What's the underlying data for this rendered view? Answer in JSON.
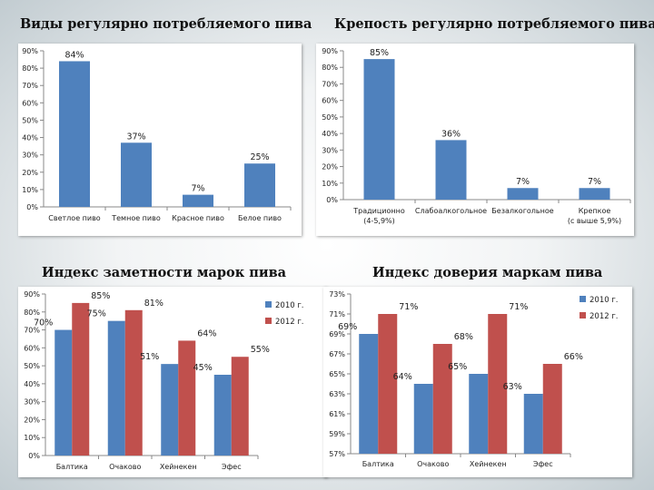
{
  "titles": {
    "types": "Виды регулярно потребляемого пива",
    "strength": "Крепость регулярно потребляемого пива",
    "awareness": "Индекс заметности марок пива",
    "trust": "Индекс доверия маркам пива"
  },
  "colors": {
    "blue": "#4f81bd",
    "red": "#c0504d"
  },
  "chart_data": [
    {
      "type": "bar",
      "title": "Виды регулярно потребляемого пива",
      "categories": [
        [
          "Светлое пиво"
        ],
        [
          "Темное пиво"
        ],
        [
          "Красное пиво"
        ],
        [
          "Белое пиво"
        ]
      ],
      "series": [
        {
          "values": [
            84,
            37,
            7,
            25
          ],
          "labels": [
            "84%",
            "37%",
            "7%",
            "25%"
          ]
        }
      ],
      "ylim": [
        0,
        90
      ],
      "yticks": [
        0,
        10,
        20,
        30,
        40,
        50,
        60,
        70,
        80,
        90
      ],
      "tick_suffix": "%",
      "grid": false,
      "legend": "none"
    },
    {
      "type": "bar",
      "title": "Крепость регулярно потребляемого пива",
      "categories": [
        [
          "Традиционно",
          "(4-5,9%)"
        ],
        [
          "Слабоалкогольное"
        ],
        [
          "Безалкогольное"
        ],
        [
          "Крепкое",
          "(с выше 5,9%)"
        ]
      ],
      "series": [
        {
          "values": [
            85,
            36,
            7,
            7
          ],
          "labels": [
            "85%",
            "36%",
            "7%",
            "7%"
          ]
        }
      ],
      "ylim": [
        0,
        90
      ],
      "yticks": [
        0,
        10,
        20,
        30,
        40,
        50,
        60,
        70,
        80,
        90
      ],
      "tick_suffix": "%",
      "grid": false,
      "legend": "none"
    },
    {
      "type": "bar",
      "title": "Индекс заметности марок пива",
      "categories": [
        [
          "Балтика"
        ],
        [
          "Очаково"
        ],
        [
          "Хейнекен"
        ],
        [
          "Эфес"
        ]
      ],
      "series": [
        {
          "name": "2010 г.",
          "values": [
            70,
            75,
            51,
            45
          ],
          "labels": [
            "70%",
            "75%",
            "51%",
            "45%"
          ]
        },
        {
          "name": "2012 г.",
          "values": [
            85,
            81,
            64,
            55
          ],
          "labels": [
            "85%",
            "81%",
            "64%",
            "55%"
          ]
        }
      ],
      "ylim": [
        0,
        90
      ],
      "yticks": [
        0,
        10,
        20,
        30,
        40,
        50,
        60,
        70,
        80,
        90
      ],
      "tick_suffix": "%",
      "grid": false,
      "legend": "right"
    },
    {
      "type": "bar",
      "title": "Индекс доверия маркам пива",
      "categories": [
        [
          "Балтика"
        ],
        [
          "Очаково"
        ],
        [
          "Хейнекен"
        ],
        [
          "Эфес"
        ]
      ],
      "series": [
        {
          "name": "2010 г.",
          "values": [
            69,
            64,
            65,
            63
          ],
          "labels": [
            "69%",
            "64%",
            "65%",
            "63%"
          ]
        },
        {
          "name": "2012 г.",
          "values": [
            71,
            68,
            71,
            66
          ],
          "labels": [
            "71%",
            "68%",
            "71%",
            "66%"
          ]
        }
      ],
      "ylim": [
        57,
        73
      ],
      "yticks": [
        57,
        59,
        61,
        63,
        65,
        67,
        69,
        71,
        73
      ],
      "tick_suffix": "%",
      "grid": false,
      "legend": "right"
    }
  ]
}
